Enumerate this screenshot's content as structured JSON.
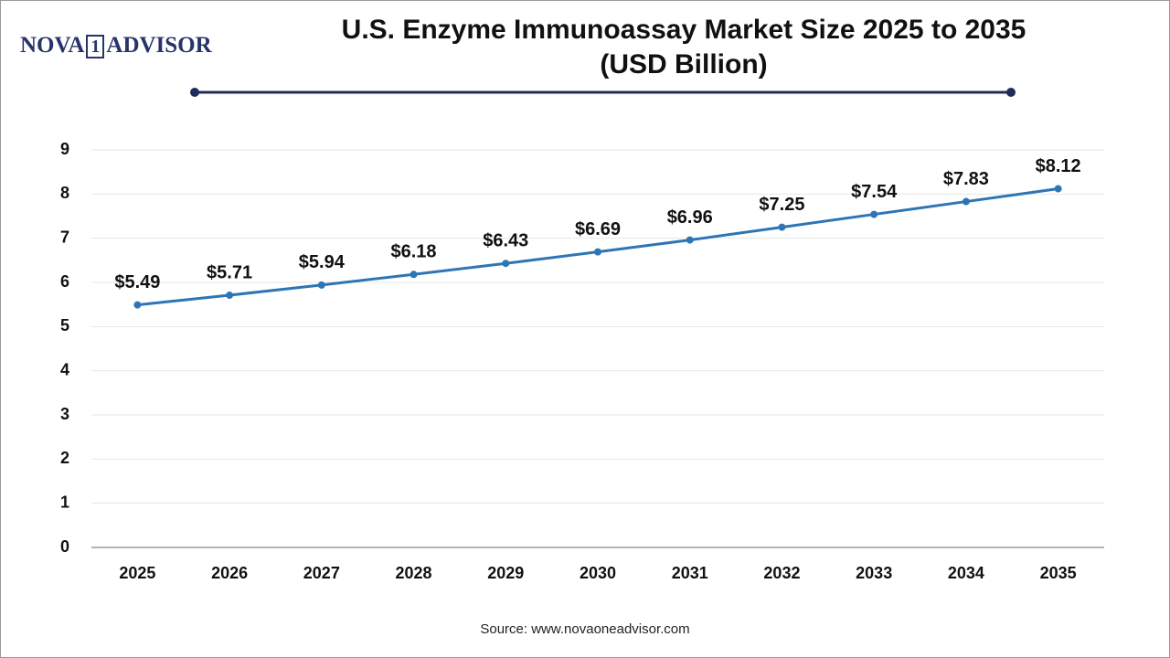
{
  "logo": {
    "left": "NOVA",
    "mark": "1",
    "right": "ADVISOR"
  },
  "chart_data": {
    "type": "line",
    "title": "U.S. Enzyme Immunoassay Market Size 2025 to 2035 (USD Billion)",
    "categories": [
      "2025",
      "2026",
      "2027",
      "2028",
      "2029",
      "2030",
      "2031",
      "2032",
      "2033",
      "2034",
      "2035"
    ],
    "values": [
      5.49,
      5.71,
      5.94,
      6.18,
      6.43,
      6.69,
      6.96,
      7.25,
      7.54,
      7.83,
      8.12
    ],
    "value_labels": [
      "$5.49",
      "$5.71",
      "$5.94",
      "$6.18",
      "$6.43",
      "$6.69",
      "$6.96",
      "$7.25",
      "$7.54",
      "$7.83",
      "$8.12"
    ],
    "color": "#2e75b6",
    "ylim": [
      0,
      9
    ],
    "yticks": [
      0,
      1,
      2,
      3,
      4,
      5,
      6,
      7,
      8,
      9
    ],
    "grid": true,
    "source": "Source: www.novaoneadvisor.com"
  }
}
